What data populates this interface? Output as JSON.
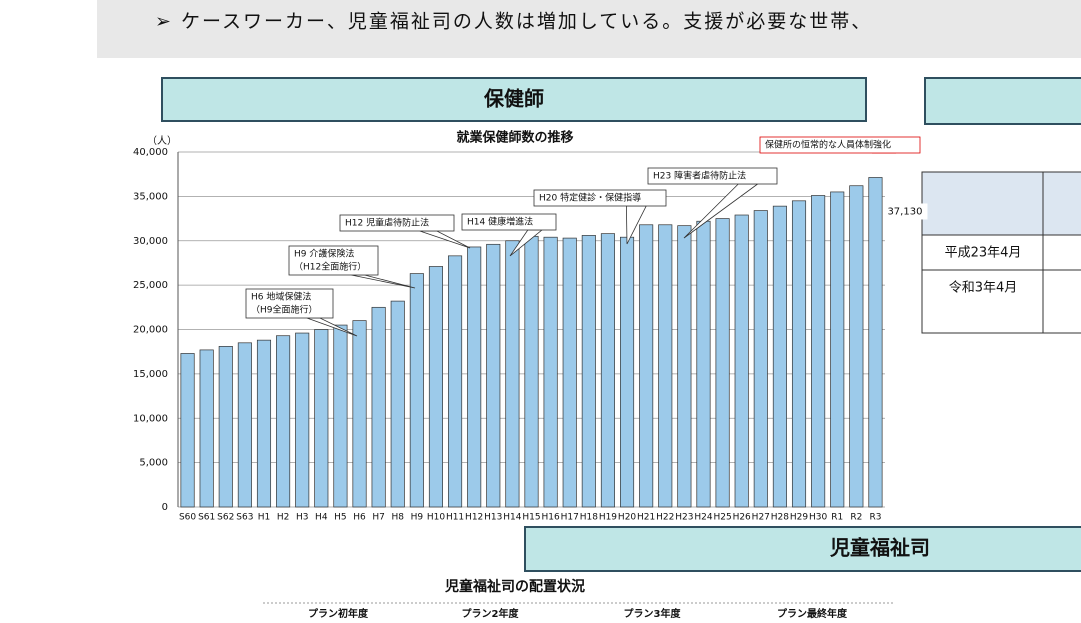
{
  "banner": "➢ ケースワーカー、児童福祉司の人数は増加している。支援が必要な世帯、",
  "section_1": "保健師",
  "section_2": "児童福祉司",
  "table_rows": [
    "平成23年4月",
    "令和3年4月"
  ],
  "bottom_title": "児童福祉司の配置状況",
  "bottom_columns": [
    "プラン初年度",
    "プラン2年度",
    "プラン3年度",
    "プラン最終年度"
  ],
  "chart_data": {
    "type": "bar",
    "title": "就業保健師数の推移",
    "y_unit": "（人）",
    "categories": [
      "S60",
      "S61",
      "S62",
      "S63",
      "H1",
      "H2",
      "H3",
      "H4",
      "H5",
      "H6",
      "H7",
      "H8",
      "H9",
      "H10",
      "H11",
      "H12",
      "H13",
      "H14",
      "H15",
      "H16",
      "H17",
      "H18",
      "H19",
      "H20",
      "H21",
      "H22",
      "H23",
      "H24",
      "H25",
      "H26",
      "H27",
      "H28",
      "H29",
      "H30",
      "R1",
      "R2",
      "R3"
    ],
    "values": [
      17300,
      17700,
      18100,
      18500,
      18800,
      19300,
      19600,
      20000,
      20500,
      21000,
      22500,
      23200,
      26300,
      27100,
      28300,
      29300,
      29600,
      30000,
      30500,
      30400,
      30300,
      30600,
      30800,
      30400,
      31800,
      31800,
      31700,
      32200,
      32500,
      32900,
      33400,
      33900,
      34500,
      35100,
      35500,
      36200,
      37130
    ],
    "value_labels": [
      null,
      null,
      null,
      null,
      null,
      null,
      null,
      null,
      null,
      null,
      null,
      null,
      null,
      null,
      null,
      null,
      null,
      null,
      null,
      null,
      null,
      null,
      null,
      null,
      null,
      null,
      null,
      null,
      null,
      null,
      null,
      null,
      null,
      null,
      null,
      null,
      "37,130"
    ],
    "color": "#9ccaea",
    "ylim": [
      0,
      40000
    ],
    "yticks": [
      0,
      {
        "value": 5000,
        "label": "5,000"
      },
      {
        "value": 10000,
        "label": "10,000"
      },
      {
        "value": 15000,
        "label": "15,000"
      },
      {
        "value": 20000,
        "label": "20,000"
      },
      {
        "value": 25000,
        "label": "25,000"
      },
      {
        "value": 30000,
        "label": "30,000"
      },
      {
        "value": 35000,
        "label": "35,000"
      },
      {
        "value": 40000,
        "label": "40,000"
      }
    ],
    "grid": true,
    "annotations": [
      [
        "H6 地域保健法",
        "（H9全面施行）"
      ],
      [
        "H9 介護保険法",
        "（H12全面施行）"
      ],
      [
        "H12 児童虐待防止法"
      ],
      [
        "H14 健康増進法"
      ],
      [
        "H20 特定健診・保健指導"
      ],
      [
        "H23 障害者虐待防止法"
      ],
      [
        "保健所の恒常的な人員体制強化"
      ]
    ]
  }
}
